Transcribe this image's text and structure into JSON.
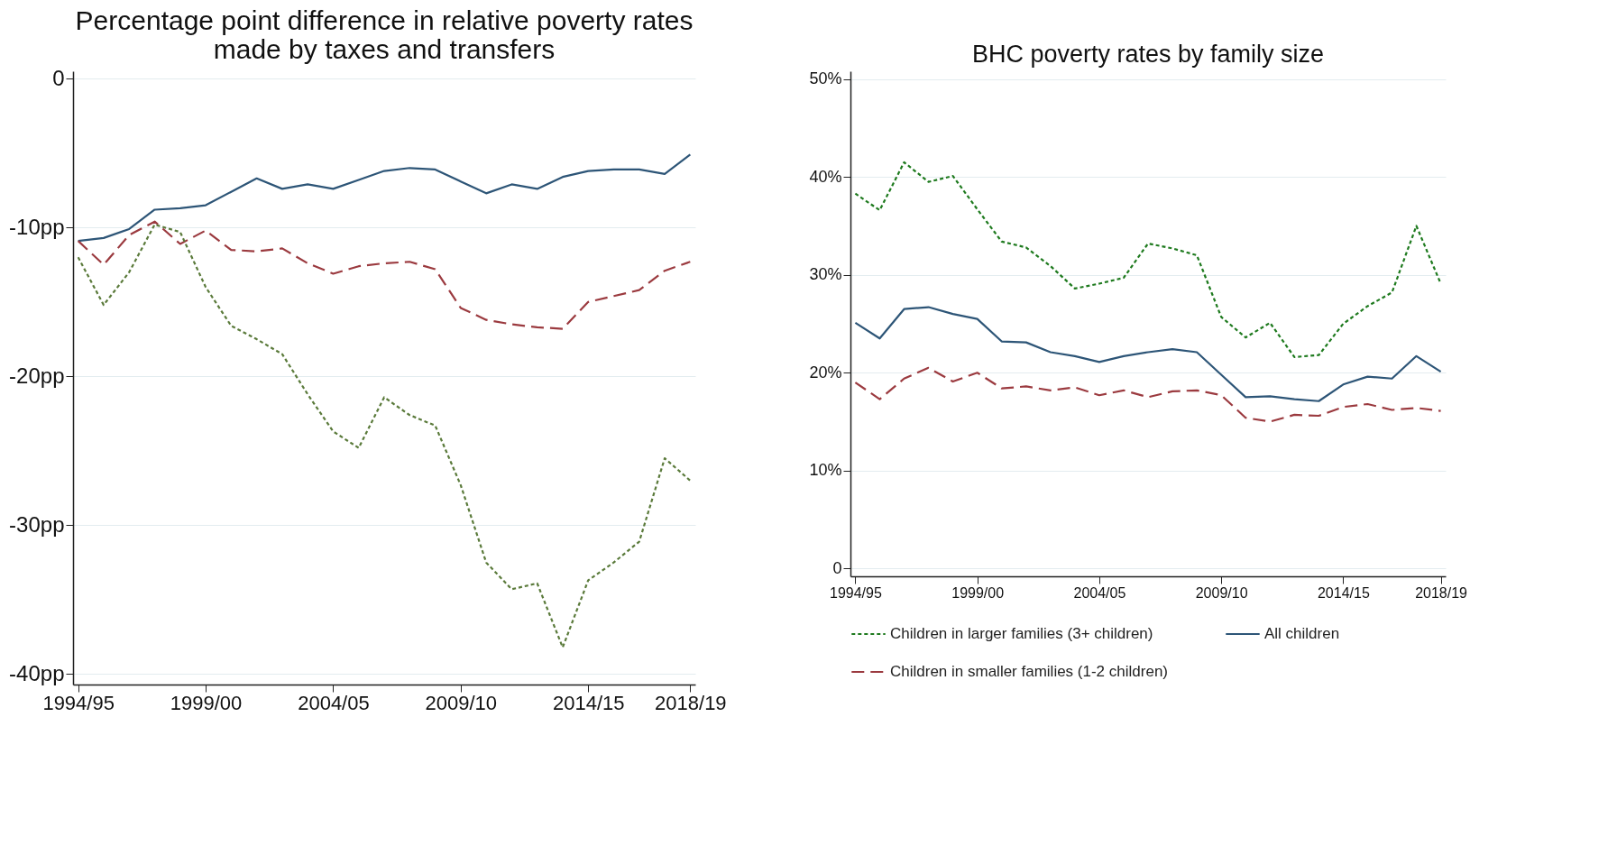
{
  "chart_data": [
    {
      "type": "line",
      "title": "Percentage point difference in relative poverty rates\nmade by taxes and transfers",
      "categories": [
        "1994/95",
        null,
        null,
        null,
        null,
        "1999/00",
        null,
        null,
        null,
        null,
        "2004/05",
        null,
        null,
        null,
        null,
        "2009/10",
        null,
        null,
        null,
        null,
        "2014/15",
        null,
        null,
        null,
        "2018/19"
      ],
      "series": [
        {
          "color": "#2d5577",
          "line_style": "solid",
          "values": [
            -10.9,
            -10.7,
            -10.1,
            -8.8,
            -8.7,
            -8.5,
            -7.6,
            -6.7,
            -7.4,
            -7.1,
            -7.4,
            -6.8,
            -6.2,
            -6.0,
            -6.1,
            -6.9,
            -7.7,
            -7.1,
            -7.4,
            -6.6,
            -6.2,
            -6.1,
            -6.1,
            -6.4,
            -5.1
          ]
        },
        {
          "color": "#9b3a3f",
          "line_style": "dashed",
          "values": [
            -10.9,
            -12.5,
            -10.5,
            -9.6,
            -11.1,
            -10.2,
            -11.5,
            -11.6,
            -11.4,
            -12.4,
            -13.1,
            -12.6,
            -12.4,
            -12.3,
            -12.8,
            -15.4,
            -16.2,
            -16.5,
            -16.7,
            -16.8,
            -15.0,
            -14.6,
            -14.2,
            -12.9,
            -12.3
          ]
        },
        {
          "color": "#5a7a3a",
          "line_style": "dotted",
          "values": [
            -12.0,
            -15.2,
            -13.0,
            -9.8,
            -10.3,
            -14.0,
            -16.6,
            -17.5,
            -18.5,
            -21.2,
            -23.7,
            -24.8,
            -21.4,
            -22.6,
            -23.3,
            -27.3,
            -32.5,
            -34.3,
            -33.9,
            -38.2,
            -33.7,
            -32.5,
            -31.1,
            -25.5,
            -27.0
          ]
        }
      ],
      "ylim": [
        -40.7,
        0.5
      ],
      "yticks": [
        {
          "value": -40,
          "label": "-40pp"
        },
        {
          "value": -30,
          "label": "-30pp"
        },
        {
          "value": -20,
          "label": "-20pp"
        },
        {
          "value": -10,
          "label": "-10pp"
        },
        0
      ],
      "grid": "y",
      "legend": false
    },
    {
      "type": "line",
      "title": "BHC poverty rates by family size",
      "categories": [
        "1994/95",
        null,
        null,
        null,
        null,
        "1999/00",
        null,
        null,
        null,
        null,
        "2004/05",
        null,
        null,
        null,
        null,
        "2009/10",
        null,
        null,
        null,
        null,
        "2014/15",
        null,
        null,
        null,
        "2018/19"
      ],
      "series": [
        {
          "name": "Children in larger families (3+ children)",
          "color": "#1e7a1e",
          "line_style": "dotted",
          "values": [
            38.3,
            36.6,
            41.5,
            39.5,
            40.1,
            36.7,
            33.4,
            32.8,
            30.9,
            28.6,
            29.1,
            29.7,
            33.2,
            32.7,
            32.0,
            25.7,
            23.6,
            25.1,
            21.6,
            21.8,
            25.0,
            26.8,
            28.2,
            35.0,
            29.1
          ]
        },
        {
          "name": "All children",
          "color": "#2d5577",
          "line_style": "solid",
          "values": [
            25.1,
            23.5,
            26.5,
            26.7,
            26.0,
            25.5,
            23.2,
            23.1,
            22.1,
            21.7,
            21.1,
            21.7,
            22.1,
            22.4,
            22.1,
            19.8,
            17.5,
            17.6,
            17.3,
            17.1,
            18.8,
            19.6,
            19.4,
            21.7,
            20.1
          ]
        },
        {
          "name": "Children in smaller families (1-2 children)",
          "color": "#9b3a3f",
          "line_style": "dashed",
          "values": [
            19.0,
            17.3,
            19.4,
            20.5,
            19.1,
            20.0,
            18.4,
            18.6,
            18.2,
            18.5,
            17.7,
            18.2,
            17.5,
            18.1,
            18.2,
            17.7,
            15.4,
            15.0,
            15.7,
            15.6,
            16.5,
            16.8,
            16.2,
            16.4,
            16.1
          ]
        }
      ],
      "ylim": [
        -0.8,
        50.8
      ],
      "yticks": [
        {
          "value": 0,
          "label": "0"
        },
        {
          "value": 10,
          "label": "10%"
        },
        {
          "value": 20,
          "label": "20%"
        },
        {
          "value": 30,
          "label": "30%"
        },
        {
          "value": 40,
          "label": "40%"
        },
        {
          "value": 50,
          "label": "50%"
        }
      ],
      "grid": "y",
      "legend": "bottom"
    }
  ]
}
